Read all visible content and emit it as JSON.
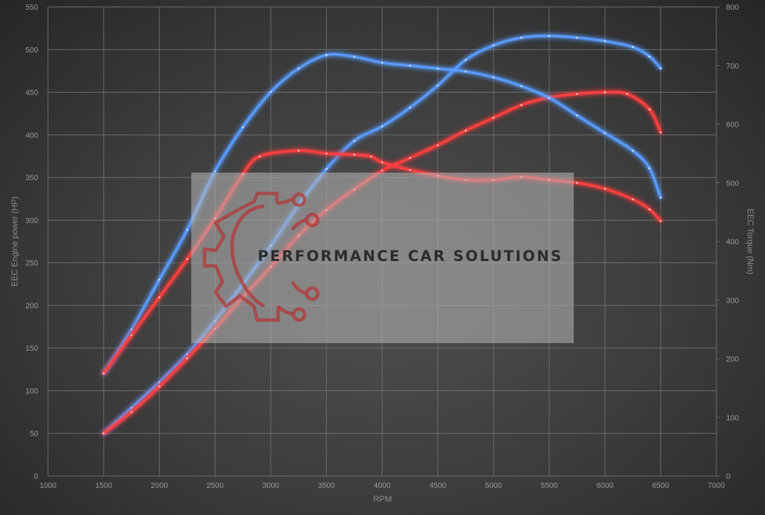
{
  "chart_data": {
    "type": "line",
    "xlabel": "RPM",
    "ylabel_left": "EEC Engine power (HP)",
    "ylabel_right": "EEC Torque (Nm)",
    "xlim": [
      1000,
      7000
    ],
    "ylim_left": [
      0,
      550
    ],
    "ylim_right": [
      0,
      800
    ],
    "x_ticks": [
      1000,
      1500,
      2000,
      2500,
      3000,
      3500,
      4000,
      4500,
      5000,
      5500,
      6000,
      6500,
      7000
    ],
    "y_left_ticks": [
      0,
      50,
      100,
      150,
      200,
      250,
      300,
      350,
      400,
      450,
      500,
      550
    ],
    "y_right_ticks": [
      0,
      100,
      200,
      300,
      400,
      500,
      600,
      700,
      800
    ],
    "grid": true,
    "series": [
      {
        "axis": "left",
        "color": "#5a9cff",
        "points": [
          [
            1500,
            50
          ],
          [
            1750,
            80
          ],
          [
            2000,
            110
          ],
          [
            2250,
            143
          ],
          [
            2500,
            182
          ],
          [
            2750,
            225
          ],
          [
            3000,
            270
          ],
          [
            3250,
            318
          ],
          [
            3500,
            360
          ],
          [
            3750,
            393
          ],
          [
            4000,
            410
          ],
          [
            4250,
            432
          ],
          [
            4500,
            458
          ],
          [
            4750,
            488
          ],
          [
            5000,
            505
          ],
          [
            5250,
            514
          ],
          [
            5500,
            516
          ],
          [
            5750,
            514
          ],
          [
            6000,
            510
          ],
          [
            6250,
            503
          ],
          [
            6400,
            492
          ],
          [
            6500,
            478
          ]
        ]
      },
      {
        "axis": "left",
        "color": "#ff4040",
        "points": [
          [
            1500,
            50
          ],
          [
            1750,
            75
          ],
          [
            2000,
            105
          ],
          [
            2250,
            138
          ],
          [
            2500,
            173
          ],
          [
            2750,
            210
          ],
          [
            3000,
            245
          ],
          [
            3250,
            282
          ],
          [
            3500,
            312
          ],
          [
            3750,
            336
          ],
          [
            4000,
            358
          ],
          [
            4250,
            373
          ],
          [
            4500,
            388
          ],
          [
            4750,
            405
          ],
          [
            5000,
            420
          ],
          [
            5250,
            435
          ],
          [
            5500,
            444
          ],
          [
            5750,
            448
          ],
          [
            6000,
            450
          ],
          [
            6200,
            448
          ],
          [
            6400,
            430
          ],
          [
            6500,
            403
          ]
        ]
      },
      {
        "axis": "right",
        "color": "#5a9cff",
        "points": [
          [
            1500,
            175
          ],
          [
            1750,
            250
          ],
          [
            2000,
            335
          ],
          [
            2250,
            420
          ],
          [
            2500,
            520
          ],
          [
            2750,
            595
          ],
          [
            3000,
            655
          ],
          [
            3250,
            695
          ],
          [
            3500,
            718
          ],
          [
            3750,
            715
          ],
          [
            4000,
            705
          ],
          [
            4250,
            700
          ],
          [
            4500,
            695
          ],
          [
            4750,
            690
          ],
          [
            5000,
            680
          ],
          [
            5250,
            665
          ],
          [
            5500,
            645
          ],
          [
            5750,
            615
          ],
          [
            6000,
            585
          ],
          [
            6250,
            555
          ],
          [
            6400,
            525
          ],
          [
            6500,
            475
          ]
        ]
      },
      {
        "axis": "right",
        "color": "#ff4040",
        "points": [
          [
            1500,
            175
          ],
          [
            1750,
            240
          ],
          [
            2000,
            305
          ],
          [
            2250,
            370
          ],
          [
            2500,
            440
          ],
          [
            2750,
            515
          ],
          [
            2900,
            545
          ],
          [
            3250,
            555
          ],
          [
            3500,
            550
          ],
          [
            3750,
            548
          ],
          [
            3900,
            545
          ],
          [
            4000,
            535
          ],
          [
            4250,
            522
          ],
          [
            4500,
            512
          ],
          [
            4750,
            505
          ],
          [
            5000,
            505
          ],
          [
            5250,
            510
          ],
          [
            5500,
            505
          ],
          [
            5750,
            500
          ],
          [
            6000,
            490
          ],
          [
            6250,
            472
          ],
          [
            6400,
            455
          ],
          [
            6500,
            435
          ]
        ]
      }
    ]
  },
  "watermark": {
    "text": "PERFORMANCE CAR SOLUTIONS",
    "icon": "gear-circuit-logo-icon",
    "color": "#b03a3a"
  }
}
